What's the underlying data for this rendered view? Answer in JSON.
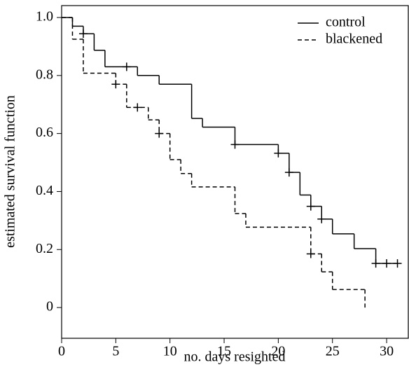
{
  "chart_data": {
    "type": "step",
    "xlabel": "no. days resighted",
    "ylabel": "estimated survival function",
    "xlim": [
      0,
      32
    ],
    "ylim": [
      -0.106,
      1.041
    ],
    "xticks": [
      0,
      5,
      10,
      15,
      20,
      25,
      30
    ],
    "yticks": [
      0,
      0.2,
      0.4,
      0.6,
      0.8,
      {
        "value": 1,
        "label": "1.0"
      }
    ],
    "legend": "upper right",
    "series": [
      {
        "name": "control",
        "color": "#000000",
        "dash": "none",
        "x": [
          0,
          1,
          2,
          3,
          4,
          7,
          9,
          12,
          13,
          16,
          20,
          21,
          22,
          23,
          24,
          25,
          27,
          29,
          31
        ],
        "values": [
          1.0,
          0.97,
          0.944,
          0.887,
          0.83,
          0.8,
          0.77,
          0.652,
          0.622,
          0.562,
          0.532,
          0.466,
          0.388,
          0.349,
          0.305,
          0.254,
          0.203,
          0.152,
          0.152
        ],
        "censor_x": [
          2,
          6,
          16,
          20,
          21,
          23,
          24,
          29,
          30,
          31
        ],
        "censor_values": [
          0.944,
          0.83,
          0.562,
          0.532,
          0.466,
          0.349,
          0.305,
          0.152,
          0.152,
          0.152
        ]
      },
      {
        "name": "blackened",
        "color": "#000000",
        "dash": "6,4",
        "x": [
          0,
          1,
          2,
          5,
          6,
          8,
          9,
          10,
          11,
          12,
          16,
          17,
          23,
          24,
          25,
          28
        ],
        "values": [
          1.0,
          0.925,
          0.808,
          0.77,
          0.69,
          0.647,
          0.6,
          0.51,
          0.462,
          0.416,
          0.324,
          0.277,
          0.185,
          0.123,
          0.062,
          0
        ],
        "censor_x": [
          5,
          7,
          9,
          23
        ],
        "censor_values": [
          0.77,
          0.69,
          0.6,
          0.185
        ]
      }
    ]
  }
}
